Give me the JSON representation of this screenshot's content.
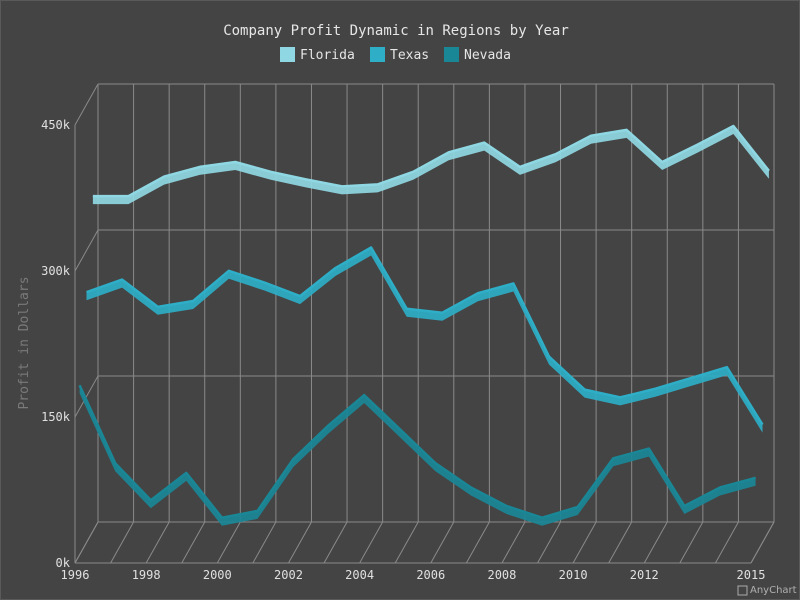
{
  "chart_data": {
    "type": "area",
    "title": "Company Profit Dynamic in Regions by Year",
    "ylabel": "Profit in Dollars",
    "xlabel": "",
    "ylim": [
      0,
      450000
    ],
    "yticks": [
      {
        "value": 0,
        "label": "0k"
      },
      {
        "value": 150000,
        "label": "150k"
      },
      {
        "value": 300000,
        "label": "300k"
      },
      {
        "value": 450000,
        "label": "450k"
      }
    ],
    "x": [
      1996,
      1997,
      1998,
      1999,
      2000,
      2001,
      2002,
      2003,
      2004,
      2005,
      2006,
      2007,
      2008,
      2009,
      2010,
      2011,
      2012,
      2013,
      2014,
      2015
    ],
    "xticks": [
      {
        "value": 1996,
        "label": "1996"
      },
      {
        "value": 1998,
        "label": "1998"
      },
      {
        "value": 2000,
        "label": "2000"
      },
      {
        "value": 2002,
        "label": "2002"
      },
      {
        "value": 2004,
        "label": "2004"
      },
      {
        "value": 2006,
        "label": "2006"
      },
      {
        "value": 2008,
        "label": "2008"
      },
      {
        "value": 2010,
        "label": "2010"
      },
      {
        "value": 2012,
        "label": "2012"
      },
      {
        "value": 2015,
        "label": "2015"
      }
    ],
    "grid": true,
    "legend_position": "top",
    "series": [
      {
        "name": "Florida",
        "color": "#8fd8e3",
        "values": [
          340000,
          340000,
          360000,
          370000,
          375000,
          365000,
          357000,
          350000,
          352000,
          365000,
          385000,
          395000,
          370000,
          383000,
          402000,
          408000,
          375000,
          393000,
          412000,
          366000
        ]
      },
      {
        "name": "Texas",
        "color": "#2eaec7",
        "values": [
          253000,
          266000,
          238000,
          244000,
          275000,
          263000,
          249000,
          278000,
          299000,
          236000,
          232000,
          252000,
          262000,
          187000,
          153000,
          145000,
          154000,
          165000,
          176000,
          117000
        ]
      },
      {
        "name": "Nevada",
        "color": "#1a8797",
        "values": [
          170000,
          90000,
          52000,
          80000,
          34000,
          41000,
          94000,
          129000,
          160000,
          125000,
          90000,
          65000,
          46000,
          34000,
          45000,
          95000,
          105000,
          46000,
          65000,
          75000
        ]
      }
    ]
  },
  "credit": {
    "label": "AnyChart"
  }
}
